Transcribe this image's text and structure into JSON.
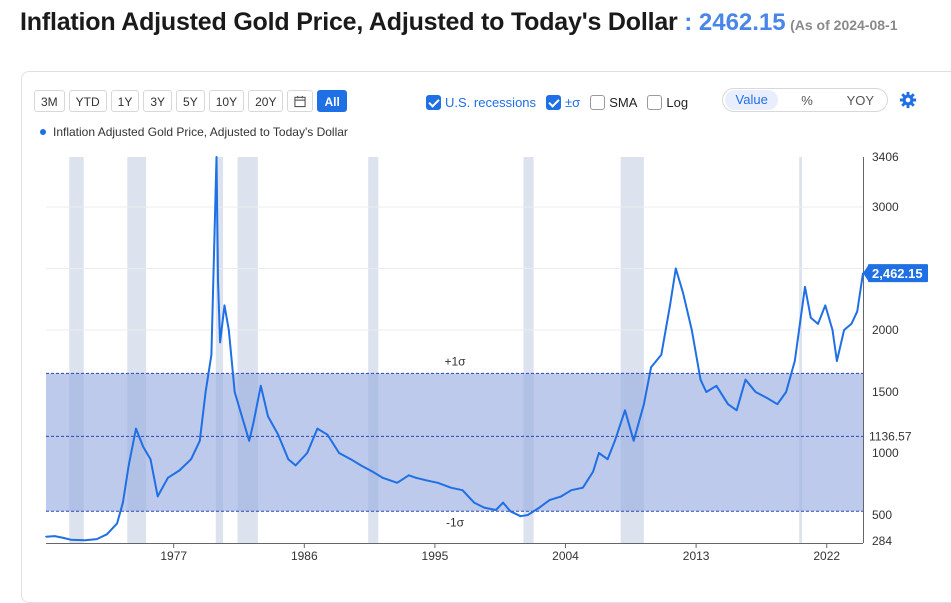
{
  "header": {
    "title": "Inflation Adjusted Gold Price, Adjusted to Today's Dollar",
    "separator": " : ",
    "current_value": "2462.15",
    "as_of": "(As of 2024-08-1"
  },
  "toolbar": {
    "ranges": [
      "3M",
      "YTD",
      "1Y",
      "3Y",
      "5Y",
      "10Y",
      "20Y"
    ],
    "calendar_icon": "calendar-icon",
    "all_label": "All",
    "options": [
      {
        "label": "U.S. recessions",
        "checked": true
      },
      {
        "label": "±σ",
        "checked": true
      },
      {
        "label": "SMA",
        "checked": false
      },
      {
        "label": "Log",
        "checked": false
      }
    ],
    "modes": [
      "Value",
      "%",
      "YOY"
    ],
    "active_mode": "Value",
    "settings_icon": "gear-icon"
  },
  "legend": {
    "series_name": "Inflation Adjusted Gold Price, Adjusted to Today's Dollar"
  },
  "chart_data": {
    "type": "line",
    "title": "Inflation Adjusted Gold Price, Adjusted to Today's Dollar",
    "xlabel": "",
    "ylabel": "",
    "x_ticks": [
      "1977",
      "1986",
      "1995",
      "2004",
      "2013",
      "2022"
    ],
    "y_ticks": [
      "284",
      "500",
      "1000",
      "1500",
      "2000",
      "3000",
      "3406"
    ],
    "ylim": [
      284,
      3406
    ],
    "xlim": [
      1968.3,
      2024.6
    ],
    "grid": true,
    "y_scale_note": "nonlinear axis",
    "band": {
      "upper": 1650,
      "lower": 530,
      "upper_label": "+1σ",
      "lower_label": "-1σ"
    },
    "mean": {
      "value": 1136.57,
      "label": "1136.57"
    },
    "last_value_label": "2,462.15",
    "recessions": [
      [
        1969.9,
        1970.9
      ],
      [
        1973.9,
        1975.2
      ],
      [
        1980.0,
        1980.5
      ],
      [
        1981.5,
        1982.9
      ],
      [
        1990.5,
        1991.2
      ],
      [
        2001.2,
        2001.9
      ],
      [
        2007.9,
        2009.5
      ],
      [
        2020.2,
        2020.4
      ]
    ],
    "series": [
      {
        "color": "#1f6fe5",
        "x": [
          1968.3,
          1968.9,
          1969.5,
          1970.0,
          1971.0,
          1971.8,
          1972.5,
          1973.2,
          1973.6,
          1974.0,
          1974.5,
          1975.0,
          1975.5,
          1976.0,
          1976.7,
          1977.5,
          1978.3,
          1978.9,
          1979.3,
          1979.7,
          1980.05,
          1980.15,
          1980.3,
          1980.6,
          1980.9,
          1981.3,
          1981.8,
          1982.3,
          1982.6,
          1983.1,
          1983.6,
          1984.3,
          1985.0,
          1985.5,
          1986.3,
          1987.0,
          1987.7,
          1988.5,
          1989.3,
          1990.0,
          1990.8,
          1991.5,
          1992.5,
          1993.3,
          1993.8,
          1994.5,
          1995.3,
          1996.2,
          1997.0,
          1997.8,
          1998.5,
          1999.3,
          1999.8,
          2000.3,
          2001.0,
          2001.5,
          2002.3,
          2003.0,
          2003.8,
          2004.5,
          2005.3,
          2006.0,
          2006.4,
          2007.0,
          2007.5,
          2008.2,
          2008.8,
          2009.5,
          2010.0,
          2010.7,
          2011.3,
          2011.7,
          2012.2,
          2012.8,
          2013.4,
          2013.8,
          2014.5,
          2015.3,
          2015.9,
          2016.5,
          2017.2,
          2018.0,
          2018.7,
          2019.3,
          2019.9,
          2020.6,
          2021.0,
          2021.5,
          2022.0,
          2022.5,
          2022.8,
          2023.3,
          2023.8,
          2024.2,
          2024.6
        ],
        "y": [
          320,
          325,
          310,
          295,
          290,
          300,
          340,
          430,
          600,
          900,
          1200,
          1050,
          950,
          650,
          800,
          860,
          950,
          1100,
          1500,
          1800,
          3406,
          2400,
          1900,
          2200,
          2000,
          1500,
          1300,
          1100,
          1250,
          1550,
          1300,
          1150,
          950,
          900,
          1000,
          1200,
          1150,
          1000,
          950,
          900,
          850,
          800,
          760,
          820,
          800,
          780,
          760,
          720,
          700,
          600,
          560,
          540,
          600,
          530,
          490,
          500,
          560,
          620,
          650,
          700,
          720,
          850,
          1000,
          950,
          1100,
          1350,
          1100,
          1400,
          1700,
          1800,
          2200,
          2500,
          2300,
          2000,
          1600,
          1500,
          1550,
          1400,
          1350,
          1600,
          1500,
          1450,
          1400,
          1500,
          1750,
          2350,
          2100,
          2050,
          2200,
          2000,
          1750,
          2000,
          2050,
          2150,
          2462.15
        ]
      }
    ]
  }
}
